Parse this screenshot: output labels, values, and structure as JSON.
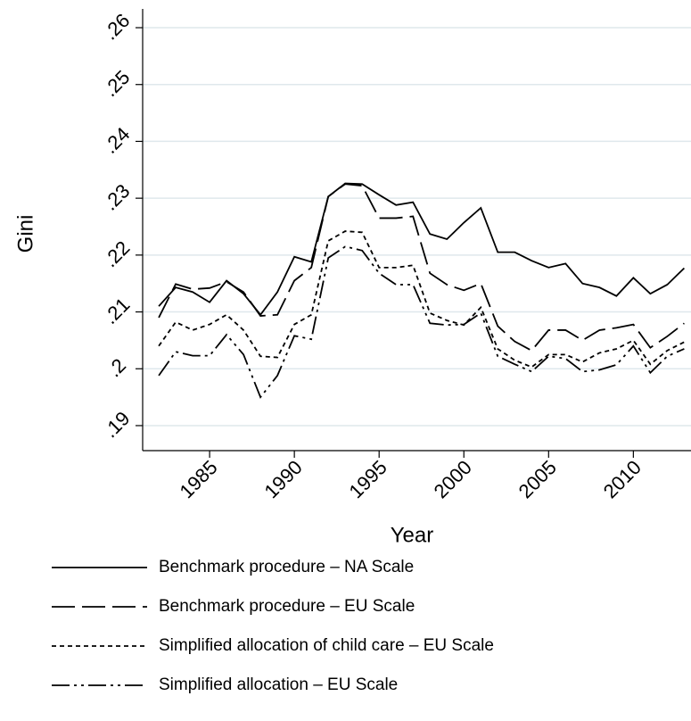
{
  "chart_data": {
    "type": "line",
    "x_label": "Year",
    "y_label": "Gini",
    "x": [
      1982,
      1983,
      1984,
      1985,
      1986,
      1987,
      1988,
      1989,
      1990,
      1991,
      1992,
      1993,
      1994,
      1995,
      1996,
      1997,
      1998,
      1999,
      2000,
      2001,
      2002,
      2003,
      2004,
      2005,
      2006,
      2007,
      2008,
      2009,
      2010,
      2011,
      2012,
      2013
    ],
    "xlim": [
      1981.05,
      2013.4
    ],
    "xticks": [
      1985,
      1990,
      1995,
      2000,
      2005,
      2010
    ],
    "ylim": [
      0.1856,
      0.2633
    ],
    "yticks": [
      {
        "value": 0.19,
        "label": ".19"
      },
      {
        "value": 0.2,
        "label": ".2"
      },
      {
        "value": 0.21,
        "label": ".21"
      },
      {
        "value": 0.22,
        "label": ".22"
      },
      {
        "value": 0.23,
        "label": ".23"
      },
      {
        "value": 0.24,
        "label": ".24"
      },
      {
        "value": 0.25,
        "label": ".25"
      },
      {
        "value": 0.26,
        "label": ".26"
      }
    ],
    "grid": true,
    "legend": "bottom",
    "series": [
      {
        "name": "Benchmark procedure – NA Scale",
        "color": "#000000",
        "style": "solid",
        "values": [
          0.211,
          0.2143,
          0.2135,
          0.2117,
          0.2155,
          0.2132,
          0.2095,
          0.2135,
          0.2197,
          0.2188,
          0.2303,
          0.2326,
          0.2325,
          0.2306,
          0.2288,
          0.2293,
          0.2237,
          0.2228,
          0.2257,
          0.2283,
          0.2205,
          0.2205,
          0.219,
          0.2178,
          0.2185,
          0.215,
          0.2143,
          0.2128,
          0.216,
          0.2132,
          0.2148,
          0.2177
        ]
      },
      {
        "name": "Benchmark procedure – EU Scale",
        "color": "#000000",
        "style": "dash",
        "values": [
          0.209,
          0.2149,
          0.214,
          0.2142,
          0.2153,
          0.2135,
          0.2093,
          0.2095,
          0.2155,
          0.2178,
          0.2303,
          0.2325,
          0.2322,
          0.2265,
          0.2265,
          0.2268,
          0.2168,
          0.2148,
          0.2138,
          0.215,
          0.2075,
          0.2048,
          0.2032,
          0.2068,
          0.2068,
          0.205,
          0.2068,
          0.2072,
          0.2078,
          0.2037,
          0.2057,
          0.208
        ]
      },
      {
        "name": "Simplified allocation of child care – EU Scale",
        "color": "#000000",
        "style": "dot",
        "values": [
          0.204,
          0.2082,
          0.2068,
          0.2078,
          0.2095,
          0.2068,
          0.2022,
          0.202,
          0.2078,
          0.2095,
          0.2225,
          0.2242,
          0.224,
          0.2178,
          0.2178,
          0.2182,
          0.2098,
          0.2085,
          0.2077,
          0.2108,
          0.2035,
          0.2015,
          0.2003,
          0.2025,
          0.2025,
          0.2012,
          0.2028,
          0.2035,
          0.205,
          0.2008,
          0.2032,
          0.2047
        ]
      },
      {
        "name": "Simplified allocation – EU Scale",
        "color": "#000000",
        "style": "dashdot",
        "values": [
          0.1988,
          0.203,
          0.2023,
          0.2023,
          0.206,
          0.2025,
          0.195,
          0.1988,
          0.2058,
          0.2052,
          0.2195,
          0.2215,
          0.2208,
          0.2168,
          0.2148,
          0.2148,
          0.208,
          0.2077,
          0.2078,
          0.2098,
          0.2022,
          0.2008,
          0.1995,
          0.2022,
          0.2018,
          0.1995,
          0.1998,
          0.2007,
          0.204,
          0.1993,
          0.2022,
          0.2035
        ]
      }
    ]
  }
}
